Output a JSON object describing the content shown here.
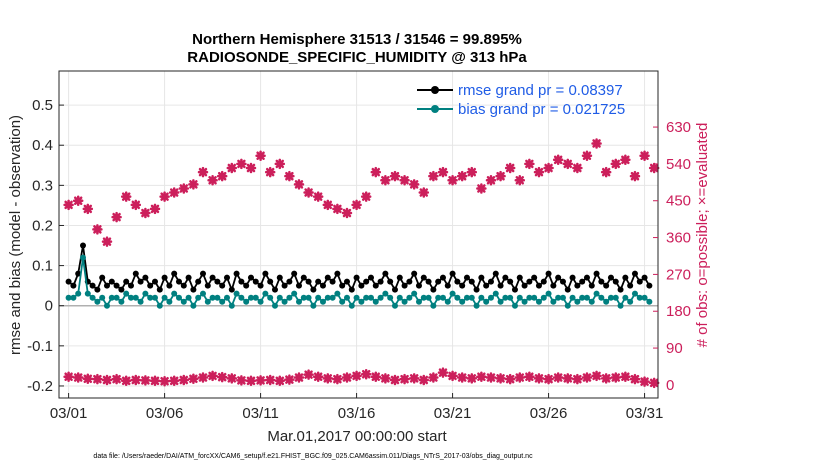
{
  "chart_data": {
    "type": "line",
    "title_line1": "Northern Hemisphere 31513 / 31546 = 99.895%",
    "title_line2": "RADIOSONDE_SPECIFIC_HUMIDITY @ 313 hPa",
    "ylabel": "rmse and bias (model - observation)",
    "ylabel_right": "# of obs: o=possible; ×=evaluated",
    "xlabel": "Mar.01,2017 00:00:00 start",
    "footnote": "data file: /Users/raeder/DAI/ATM_forcXX/CAM6_setup/f.e21.FHIST_BGC.f09_025.CAM6assim.011/Diags_NTrS_2017-03/obs_diag_output.nc",
    "xlim": [
      0.5,
      31.7
    ],
    "ylim": [
      -0.23,
      0.585
    ],
    "ylim_right": [
      -32,
      767
    ],
    "y_ticks": [
      -0.2,
      -0.1,
      0,
      0.1,
      0.2,
      0.3,
      0.4,
      0.5
    ],
    "y_tick_labels": [
      "-0.2",
      "-0.1",
      "0",
      "0.1",
      "0.2",
      "0.3",
      "0.4",
      "0.5"
    ],
    "y_right_ticks": [
      0,
      90,
      180,
      270,
      360,
      450,
      540,
      630
    ],
    "y_right_tick_labels": [
      "0",
      "90",
      "180",
      "270",
      "360",
      "450",
      "540",
      "630"
    ],
    "x_ticks": [
      1,
      6,
      11,
      16,
      21,
      26,
      31
    ],
    "x_tick_labels": [
      "03/01",
      "03/06",
      "03/11",
      "03/16",
      "03/21",
      "03/26",
      "03/31"
    ],
    "zero_line": 0,
    "series": [
      {
        "name": "rmse",
        "legend": "rmse grand pr = 0.08397",
        "color": "#000000",
        "x": [
          1.0,
          1.25,
          1.5,
          1.75,
          2.0,
          2.25,
          2.5,
          2.75,
          3.0,
          3.25,
          3.5,
          3.75,
          4.0,
          4.25,
          4.5,
          4.75,
          5.0,
          5.25,
          5.5,
          5.75,
          6.0,
          6.25,
          6.5,
          6.75,
          7.0,
          7.25,
          7.5,
          7.75,
          8.0,
          8.25,
          8.5,
          8.75,
          9.0,
          9.25,
          9.5,
          9.75,
          10.0,
          10.25,
          10.5,
          10.75,
          11.0,
          11.25,
          11.5,
          11.75,
          12.0,
          12.25,
          12.5,
          12.75,
          13.0,
          13.25,
          13.5,
          13.75,
          14.0,
          14.25,
          14.5,
          14.75,
          15.0,
          15.25,
          15.5,
          15.75,
          16.0,
          16.25,
          16.5,
          16.75,
          17.0,
          17.25,
          17.5,
          17.75,
          18.0,
          18.25,
          18.5,
          18.75,
          19.0,
          19.25,
          19.5,
          19.75,
          20.0,
          20.25,
          20.5,
          20.75,
          21.0,
          21.25,
          21.5,
          21.75,
          22.0,
          22.25,
          22.5,
          22.75,
          23.0,
          23.25,
          23.5,
          23.75,
          24.0,
          24.25,
          24.5,
          24.75,
          25.0,
          25.25,
          25.5,
          25.75,
          26.0,
          26.25,
          26.5,
          26.75,
          27.0,
          27.25,
          27.5,
          27.75,
          28.0,
          28.25,
          28.5,
          28.75,
          29.0,
          29.25,
          29.5,
          29.75,
          30.0,
          30.25,
          30.5,
          30.75,
          31.0,
          31.25
        ],
        "values": [
          0.06,
          0.05,
          0.08,
          0.15,
          0.06,
          0.05,
          0.04,
          0.07,
          0.05,
          0.06,
          0.05,
          0.04,
          0.06,
          0.05,
          0.08,
          0.06,
          0.07,
          0.05,
          0.06,
          0.04,
          0.07,
          0.05,
          0.08,
          0.06,
          0.05,
          0.07,
          0.04,
          0.06,
          0.08,
          0.05,
          0.07,
          0.06,
          0.05,
          0.07,
          0.04,
          0.08,
          0.06,
          0.05,
          0.07,
          0.06,
          0.05,
          0.08,
          0.06,
          0.04,
          0.07,
          0.05,
          0.06,
          0.08,
          0.05,
          0.07,
          0.06,
          0.04,
          0.06,
          0.05,
          0.07,
          0.06,
          0.08,
          0.05,
          0.06,
          0.04,
          0.07,
          0.05,
          0.06,
          0.07,
          0.05,
          0.06,
          0.08,
          0.06,
          0.04,
          0.07,
          0.05,
          0.06,
          0.08,
          0.05,
          0.07,
          0.06,
          0.04,
          0.06,
          0.07,
          0.05,
          0.08,
          0.06,
          0.05,
          0.07,
          0.06,
          0.04,
          0.07,
          0.05,
          0.06,
          0.08,
          0.05,
          0.07,
          0.06,
          0.04,
          0.07,
          0.05,
          0.06,
          0.07,
          0.05,
          0.06,
          0.08,
          0.05,
          0.07,
          0.06,
          0.04,
          0.07,
          0.05,
          0.06,
          0.07,
          0.05,
          0.08,
          0.06,
          0.05,
          0.07,
          0.06,
          0.04,
          0.07,
          0.05,
          0.08,
          0.06,
          0.07,
          0.05
        ]
      },
      {
        "name": "bias",
        "legend": "bias grand pr = 0.021725",
        "color": "#008080",
        "x": [
          1.0,
          1.25,
          1.5,
          1.75,
          2.0,
          2.25,
          2.5,
          2.75,
          3.0,
          3.25,
          3.5,
          3.75,
          4.0,
          4.25,
          4.5,
          4.75,
          5.0,
          5.25,
          5.5,
          5.75,
          6.0,
          6.25,
          6.5,
          6.75,
          7.0,
          7.25,
          7.5,
          7.75,
          8.0,
          8.25,
          8.5,
          8.75,
          9.0,
          9.25,
          9.5,
          9.75,
          10.0,
          10.25,
          10.5,
          10.75,
          11.0,
          11.25,
          11.5,
          11.75,
          12.0,
          12.25,
          12.5,
          12.75,
          13.0,
          13.25,
          13.5,
          13.75,
          14.0,
          14.25,
          14.5,
          14.75,
          15.0,
          15.25,
          15.5,
          15.75,
          16.0,
          16.25,
          16.5,
          16.75,
          17.0,
          17.25,
          17.5,
          17.75,
          18.0,
          18.25,
          18.5,
          18.75,
          19.0,
          19.25,
          19.5,
          19.75,
          20.0,
          20.25,
          20.5,
          20.75,
          21.0,
          21.25,
          21.5,
          21.75,
          22.0,
          22.25,
          22.5,
          22.75,
          23.0,
          23.25,
          23.5,
          23.75,
          24.0,
          24.25,
          24.5,
          24.75,
          25.0,
          25.25,
          25.5,
          25.75,
          26.0,
          26.25,
          26.5,
          26.75,
          27.0,
          27.25,
          27.5,
          27.75,
          28.0,
          28.25,
          28.5,
          28.75,
          29.0,
          29.25,
          29.5,
          29.75,
          30.0,
          30.25,
          30.5,
          30.75,
          31.0,
          31.25
        ],
        "values": [
          0.02,
          0.02,
          0.03,
          0.12,
          0.03,
          0.02,
          0.01,
          0.02,
          0.0,
          0.02,
          0.02,
          0.01,
          0.03,
          0.02,
          0.02,
          0.01,
          0.03,
          0.02,
          0.02,
          0.0,
          0.02,
          0.01,
          0.03,
          0.02,
          0.01,
          0.02,
          0.0,
          0.02,
          0.03,
          0.01,
          0.02,
          0.02,
          0.01,
          0.02,
          0.0,
          0.03,
          0.02,
          0.01,
          0.02,
          0.02,
          0.01,
          0.03,
          0.02,
          0.0,
          0.02,
          0.01,
          0.02,
          0.03,
          0.01,
          0.02,
          0.02,
          0.0,
          0.02,
          0.01,
          0.02,
          0.02,
          0.03,
          0.01,
          0.02,
          0.0,
          0.02,
          0.01,
          0.02,
          0.02,
          0.01,
          0.02,
          0.03,
          0.02,
          0.0,
          0.02,
          0.01,
          0.02,
          0.03,
          0.01,
          0.02,
          0.02,
          0.0,
          0.02,
          0.02,
          0.01,
          0.03,
          0.02,
          0.01,
          0.02,
          0.02,
          0.0,
          0.02,
          0.01,
          0.02,
          0.03,
          0.01,
          0.02,
          0.02,
          0.0,
          0.02,
          0.01,
          0.02,
          0.02,
          0.01,
          0.02,
          0.03,
          0.01,
          0.02,
          0.02,
          0.0,
          0.02,
          0.01,
          0.02,
          0.02,
          0.01,
          0.03,
          0.02,
          0.01,
          0.02,
          0.02,
          0.0,
          0.02,
          0.01,
          0.03,
          0.02,
          0.02,
          0.01
        ]
      }
    ],
    "obs_counts": {
      "name": "obs count",
      "color": "#cc1f5b",
      "axis": "right",
      "x": [
        1.0,
        1.5,
        2.0,
        2.5,
        3.0,
        3.5,
        4.0,
        4.5,
        5.0,
        5.5,
        6.0,
        6.5,
        7.0,
        7.5,
        8.0,
        8.5,
        9.0,
        9.5,
        10.0,
        10.5,
        11.0,
        11.5,
        12.0,
        12.5,
        13.0,
        13.5,
        14.0,
        14.5,
        15.0,
        15.5,
        16.0,
        16.5,
        17.0,
        17.5,
        18.0,
        18.5,
        19.0,
        19.5,
        20.0,
        20.5,
        21.0,
        21.5,
        22.0,
        22.5,
        23.0,
        23.5,
        24.0,
        24.5,
        25.0,
        25.5,
        26.0,
        26.5,
        27.0,
        27.5,
        28.0,
        28.5,
        29.0,
        29.5,
        30.0,
        30.5,
        31.0,
        31.5
      ],
      "values": [
        440,
        450,
        430,
        380,
        350,
        410,
        460,
        440,
        420,
        430,
        460,
        470,
        480,
        490,
        520,
        500,
        510,
        530,
        540,
        530,
        560,
        520,
        540,
        510,
        490,
        470,
        460,
        440,
        430,
        420,
        440,
        460,
        520,
        500,
        510,
        500,
        490,
        470,
        510,
        520,
        500,
        510,
        520,
        480,
        500,
        510,
        530,
        500,
        540,
        520,
        530,
        550,
        540,
        530,
        560,
        590,
        520,
        540,
        550,
        510,
        560,
        530
      ],
      "values_low": [
        20,
        18,
        15,
        14,
        12,
        14,
        10,
        12,
        11,
        10,
        9,
        10,
        12,
        15,
        18,
        22,
        19,
        16,
        11,
        10,
        11,
        12,
        10,
        13,
        18,
        25,
        20,
        16,
        14,
        18,
        22,
        26,
        20,
        16,
        12,
        14,
        16,
        12,
        18,
        30,
        22,
        18,
        16,
        20,
        18,
        16,
        14,
        18,
        20,
        16,
        14,
        18,
        16,
        14,
        18,
        22,
        16,
        18,
        20,
        14,
        8,
        5
      ]
    }
  }
}
